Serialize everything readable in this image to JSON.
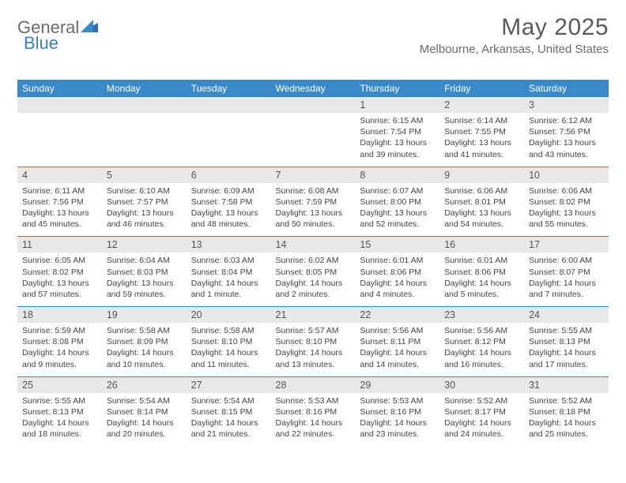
{
  "logo": {
    "part1": "General",
    "part2": "Blue"
  },
  "title": "May 2025",
  "location": "Melbourne, Arkansas, United States",
  "colors": {
    "header_bg": "#3a89c9",
    "header_text": "#ffffff",
    "daynum_bg": "#e8e8e8",
    "text": "#444444",
    "title_color": "#5a5a5a",
    "logo_gray": "#6b6b6b",
    "logo_blue": "#3a7fc4"
  },
  "day_headers": [
    "Sunday",
    "Monday",
    "Tuesday",
    "Wednesday",
    "Thursday",
    "Friday",
    "Saturday"
  ],
  "weeks": [
    [
      null,
      null,
      null,
      null,
      {
        "n": "1",
        "sr": "6:15 AM",
        "ss": "7:54 PM",
        "dl": "13 hours and 39 minutes."
      },
      {
        "n": "2",
        "sr": "6:14 AM",
        "ss": "7:55 PM",
        "dl": "13 hours and 41 minutes."
      },
      {
        "n": "3",
        "sr": "6:12 AM",
        "ss": "7:56 PM",
        "dl": "13 hours and 43 minutes."
      }
    ],
    [
      {
        "n": "4",
        "sr": "6:11 AM",
        "ss": "7:56 PM",
        "dl": "13 hours and 45 minutes."
      },
      {
        "n": "5",
        "sr": "6:10 AM",
        "ss": "7:57 PM",
        "dl": "13 hours and 46 minutes."
      },
      {
        "n": "6",
        "sr": "6:09 AM",
        "ss": "7:58 PM",
        "dl": "13 hours and 48 minutes."
      },
      {
        "n": "7",
        "sr": "6:08 AM",
        "ss": "7:59 PM",
        "dl": "13 hours and 50 minutes."
      },
      {
        "n": "8",
        "sr": "6:07 AM",
        "ss": "8:00 PM",
        "dl": "13 hours and 52 minutes."
      },
      {
        "n": "9",
        "sr": "6:06 AM",
        "ss": "8:01 PM",
        "dl": "13 hours and 54 minutes."
      },
      {
        "n": "10",
        "sr": "6:06 AM",
        "ss": "8:02 PM",
        "dl": "13 hours and 55 minutes."
      }
    ],
    [
      {
        "n": "11",
        "sr": "6:05 AM",
        "ss": "8:02 PM",
        "dl": "13 hours and 57 minutes."
      },
      {
        "n": "12",
        "sr": "6:04 AM",
        "ss": "8:03 PM",
        "dl": "13 hours and 59 minutes."
      },
      {
        "n": "13",
        "sr": "6:03 AM",
        "ss": "8:04 PM",
        "dl": "14 hours and 1 minute."
      },
      {
        "n": "14",
        "sr": "6:02 AM",
        "ss": "8:05 PM",
        "dl": "14 hours and 2 minutes."
      },
      {
        "n": "15",
        "sr": "6:01 AM",
        "ss": "8:06 PM",
        "dl": "14 hours and 4 minutes."
      },
      {
        "n": "16",
        "sr": "6:01 AM",
        "ss": "8:06 PM",
        "dl": "14 hours and 5 minutes."
      },
      {
        "n": "17",
        "sr": "6:00 AM",
        "ss": "8:07 PM",
        "dl": "14 hours and 7 minutes."
      }
    ],
    [
      {
        "n": "18",
        "sr": "5:59 AM",
        "ss": "8:08 PM",
        "dl": "14 hours and 9 minutes."
      },
      {
        "n": "19",
        "sr": "5:58 AM",
        "ss": "8:09 PM",
        "dl": "14 hours and 10 minutes."
      },
      {
        "n": "20",
        "sr": "5:58 AM",
        "ss": "8:10 PM",
        "dl": "14 hours and 11 minutes."
      },
      {
        "n": "21",
        "sr": "5:57 AM",
        "ss": "8:10 PM",
        "dl": "14 hours and 13 minutes."
      },
      {
        "n": "22",
        "sr": "5:56 AM",
        "ss": "8:11 PM",
        "dl": "14 hours and 14 minutes."
      },
      {
        "n": "23",
        "sr": "5:56 AM",
        "ss": "8:12 PM",
        "dl": "14 hours and 16 minutes."
      },
      {
        "n": "24",
        "sr": "5:55 AM",
        "ss": "8:13 PM",
        "dl": "14 hours and 17 minutes."
      }
    ],
    [
      {
        "n": "25",
        "sr": "5:55 AM",
        "ss": "8:13 PM",
        "dl": "14 hours and 18 minutes."
      },
      {
        "n": "26",
        "sr": "5:54 AM",
        "ss": "8:14 PM",
        "dl": "14 hours and 20 minutes."
      },
      {
        "n": "27",
        "sr": "5:54 AM",
        "ss": "8:15 PM",
        "dl": "14 hours and 21 minutes."
      },
      {
        "n": "28",
        "sr": "5:53 AM",
        "ss": "8:16 PM",
        "dl": "14 hours and 22 minutes."
      },
      {
        "n": "29",
        "sr": "5:53 AM",
        "ss": "8:16 PM",
        "dl": "14 hours and 23 minutes."
      },
      {
        "n": "30",
        "sr": "5:52 AM",
        "ss": "8:17 PM",
        "dl": "14 hours and 24 minutes."
      },
      {
        "n": "31",
        "sr": "5:52 AM",
        "ss": "8:18 PM",
        "dl": "14 hours and 25 minutes."
      }
    ]
  ],
  "labels": {
    "sunrise": "Sunrise:",
    "sunset": "Sunset:",
    "daylight": "Daylight:"
  }
}
